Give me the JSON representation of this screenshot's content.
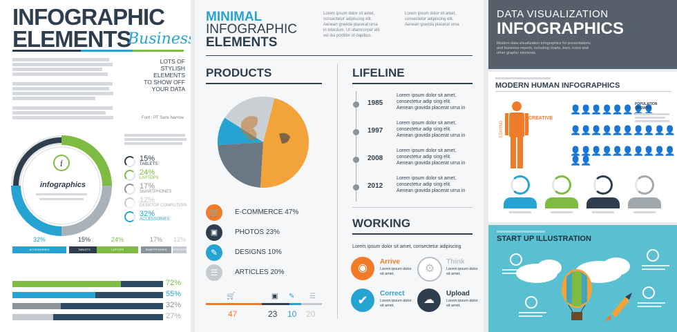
{
  "panel1": {
    "title_line1": "INFOGRAPHIC",
    "title_line2": "ELEMENTS",
    "subtitle": "Business",
    "tagline": [
      "LOTS OF",
      "STYLISH ELEMENTS",
      "TO SHOW OFF",
      "YOUR DATA"
    ],
    "font_note": "Font : PT Sans Narrow",
    "circle_label": "infographics",
    "legend": [
      {
        "value": "15%",
        "label": "TABLETS",
        "color": "#2e3e4e"
      },
      {
        "value": "24%",
        "label": "LAPTOPS",
        "color": "#7dbb42"
      },
      {
        "value": "17%",
        "label": "SMARTPHONES",
        "color": "#8a949b"
      },
      {
        "value": "12%",
        "label": "DESKTOP COMPUTERS",
        "color": "#c4cacf"
      },
      {
        "value": "32%",
        "label": "ACCESSORIES",
        "color": "#27a3d2"
      }
    ],
    "tabs": [
      {
        "value": "32%",
        "label": "ACCESSORIES",
        "color": "#27a3d2"
      },
      {
        "value": "15%",
        "label": "TABLETS",
        "color": "#2e3e4e"
      },
      {
        "value": "24%",
        "label": "LAPTOPS",
        "color": "#7dbb42"
      },
      {
        "value": "17%",
        "label": "SMARTPHONES",
        "color": "#8a949b"
      },
      {
        "value": "12%",
        "label": "DESKTOPS",
        "color": "#c4cacf"
      }
    ],
    "progress": [
      {
        "value": "72%",
        "fraction": 0.72,
        "color": "#7dbb42"
      },
      {
        "value": "55%",
        "fraction": 0.55,
        "color": "#27a3d2"
      },
      {
        "value": "32%",
        "fraction": 0.32,
        "color": "#8a949b"
      },
      {
        "value": "27%",
        "fraction": 0.27,
        "color": "#c4cacf"
      }
    ]
  },
  "panel2": {
    "title_line1": "MINIMAL",
    "title_line2": "INFOGRAPHIC",
    "title_line3": "ELEMENTS",
    "lorem_block": [
      "Lorem ipsum dolor sit amet,",
      "consectetur adipiscing elit.",
      "Aenean gravida placerat urna",
      "in interdum. Ut ullamcorper elit",
      "vel dui porttitor id dapibus."
    ],
    "products_heading": "PRODUCTS",
    "pie": [
      {
        "name": "E-COMMERCE",
        "value": 47,
        "color": "#f2a33a"
      },
      {
        "name": "PHOTOS",
        "value": 23,
        "color": "#6b7883"
      },
      {
        "name": "DESIGNS",
        "value": 10,
        "color": "#27a3d2"
      },
      {
        "name": "ARTICLES",
        "value": 20,
        "color": "#c9cfd3"
      }
    ],
    "legend": [
      {
        "label": "E-COMMERCE 47%",
        "color": "#f07c2a",
        "icon": "cart-icon"
      },
      {
        "label": "PHOTOS 23%",
        "color": "#2e3e4e",
        "icon": "photo-icon"
      },
      {
        "label": "DESIGNS 10%",
        "color": "#27a3d2",
        "icon": "pen-icon"
      },
      {
        "label": "ARTICLES 20%",
        "color": "#c4cacf",
        "icon": "document-icon"
      }
    ],
    "bottom_values": [
      "47",
      "23",
      "10",
      "20"
    ],
    "lifeline_heading": "LIFELINE",
    "timeline": [
      {
        "year": "1985",
        "text": [
          "Lorem ipsum dolor sit amet,",
          "consectetur adip sing elit.",
          "Aenean gravida placerat urna in"
        ]
      },
      {
        "year": "1997",
        "text": [
          "Lorem ipsum dolor sit amet,",
          "consectetur adip sing elit.",
          "Aenean gravida placerat urna in"
        ]
      },
      {
        "year": "2008",
        "text": [
          "Lorem ipsum dolor sit amet,",
          "consectetur adip sing elit.",
          "Aenean gravida placerat urna in"
        ]
      },
      {
        "year": "2012",
        "text": [
          "Lorem ipsum dolor sit amet,",
          "consectetur adip sing elit.",
          "Aenean gravida placerat urna in"
        ]
      }
    ],
    "working_heading": "WORKING",
    "working_lead": "Lorem ipsum dolor sit amet, consectetur adipiscing",
    "steps": [
      {
        "title": "Arrive",
        "color": "#f07c2a",
        "icon": "location-pin-icon",
        "text": [
          "Lorem ipsum dolor",
          "sit amet,"
        ]
      },
      {
        "title": "Think",
        "color": "#b7bec4",
        "icon": "gears-icon",
        "text": [
          "Lorem ipsum dolor",
          "sit amet,"
        ]
      },
      {
        "title": "Correct",
        "color": "#27a3d2",
        "icon": "checkmark-icon",
        "text": [
          "Lorem ipsum dolor",
          "sit amet,"
        ]
      },
      {
        "title": "Upload",
        "color": "#2e3e4e",
        "icon": "cloud-upload-icon",
        "text": [
          "Lorem ipsum dolor",
          "sit amet,"
        ]
      }
    ]
  },
  "panel3": {
    "title_line1": "DATA VISUALIZATION",
    "title_line2": "INFOGRAPHICS",
    "desc": [
      "Modern data visualization infographics for presentations",
      "and business reports, including charts, bars, icons and",
      "other graphic elements."
    ],
    "human_heading": "MODERN HUMAN INFOGRAPHICS",
    "human_label": "CREATIVE",
    "human_side": "STAYING",
    "population_label": [
      "POPULATION",
      "GROWTH"
    ],
    "startup_heading": "START UP ILLUSTRATION"
  }
}
